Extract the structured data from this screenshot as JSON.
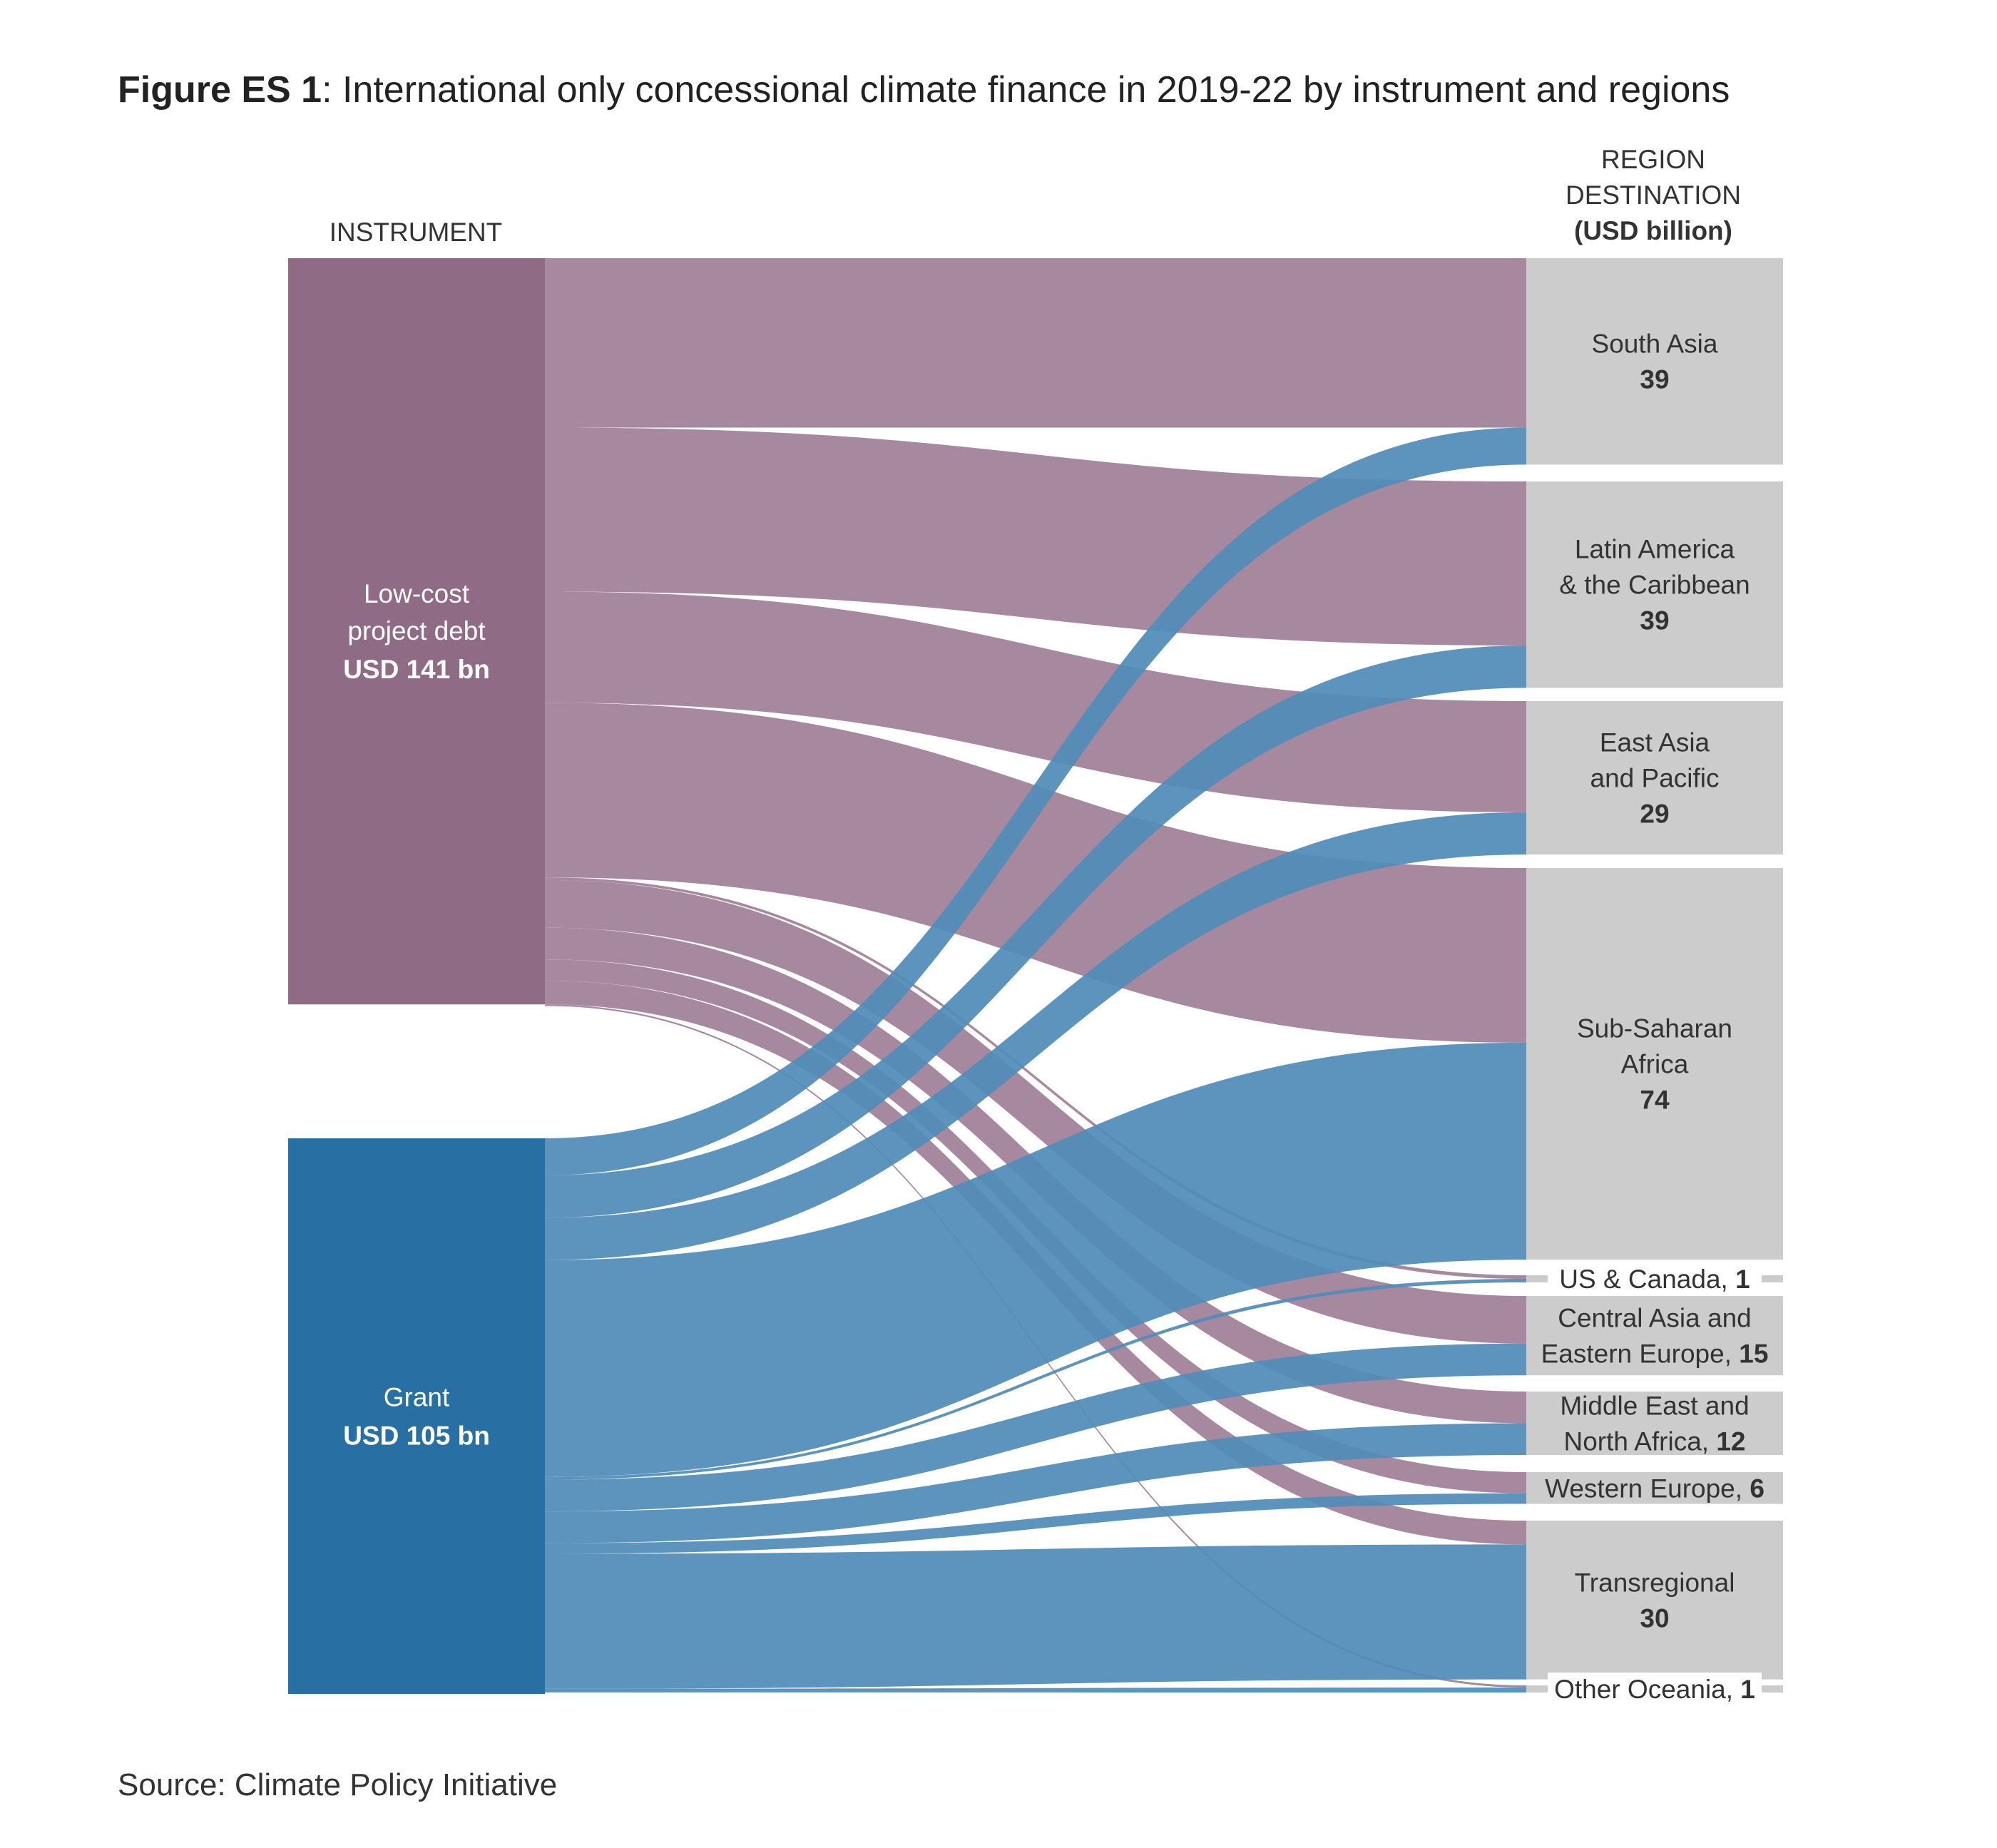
{
  "title": {
    "prefix": "Figure ES 1",
    "text": ": International only concessional climate finance in 2019-22 by instrument and regions"
  },
  "source": "Source: Climate Policy Initiative",
  "headers": {
    "instrument": "INSTRUMENT",
    "region_line1": "REGION",
    "region_line2": "DESTINATION",
    "region_line3": "(USD billion)"
  },
  "colors": {
    "debt_node": "#8f6b86",
    "debt_flow": "#a6889f",
    "grant_node": "#286fa4",
    "grant_flow": "#508cb8",
    "region_node": "#cccccc"
  },
  "chart_data": {
    "type": "sankey",
    "unit": "USD billion",
    "sources": [
      {
        "id": "debt",
        "label_lines": [
          "Low-cost",
          "project debt"
        ],
        "value_label": "USD 141 bn",
        "value": 141
      },
      {
        "id": "grant",
        "label_lines": [
          "Grant"
        ],
        "value_label": "USD 105 bn",
        "value": 105
      }
    ],
    "targets": [
      {
        "id": "south_asia",
        "label_lines": [
          "South Asia"
        ],
        "value_label": "39",
        "value": 39
      },
      {
        "id": "latam",
        "label_lines": [
          "Latin America",
          "& the Caribbean"
        ],
        "value_label": "39",
        "value": 39
      },
      {
        "id": "east_asia",
        "label_lines": [
          "East Asia",
          "and Pacific"
        ],
        "value_label": "29",
        "value": 29
      },
      {
        "id": "ssa",
        "label_lines": [
          "Sub-Saharan",
          "Africa"
        ],
        "value_label": "74",
        "value": 74
      },
      {
        "id": "us_canada",
        "label_lines": [
          "US & Canada,"
        ],
        "value_label": "1",
        "value": 1
      },
      {
        "id": "ca_ee",
        "label_lines": [
          "Central Asia and",
          "Eastern Europe,"
        ],
        "value_label": "15",
        "value": 15
      },
      {
        "id": "mena",
        "label_lines": [
          "Middle East and",
          "North Africa,"
        ],
        "value_label": "12",
        "value": 12
      },
      {
        "id": "w_europe",
        "label_lines": [
          "Western Europe,"
        ],
        "value_label": "6",
        "value": 6
      },
      {
        "id": "transregional",
        "label_lines": [
          "Transregional"
        ],
        "value_label": "30",
        "value": 30
      },
      {
        "id": "oceania",
        "label_lines": [
          "Other Oceania,"
        ],
        "value_label": "1",
        "value": 1
      }
    ],
    "flows": [
      {
        "source": "debt",
        "target": "south_asia",
        "value": 32
      },
      {
        "source": "debt",
        "target": "latam",
        "value": 31
      },
      {
        "source": "debt",
        "target": "east_asia",
        "value": 21
      },
      {
        "source": "debt",
        "target": "ssa",
        "value": 33
      },
      {
        "source": "debt",
        "target": "us_canada",
        "value": 0.5
      },
      {
        "source": "debt",
        "target": "ca_ee",
        "value": 9
      },
      {
        "source": "debt",
        "target": "mena",
        "value": 6
      },
      {
        "source": "debt",
        "target": "w_europe",
        "value": 4
      },
      {
        "source": "debt",
        "target": "transregional",
        "value": 4.5
      },
      {
        "source": "debt",
        "target": "oceania",
        "value": 0.3
      },
      {
        "source": "grant",
        "target": "south_asia",
        "value": 7
      },
      {
        "source": "grant",
        "target": "latam",
        "value": 8
      },
      {
        "source": "grant",
        "target": "east_asia",
        "value": 8
      },
      {
        "source": "grant",
        "target": "ssa",
        "value": 41
      },
      {
        "source": "grant",
        "target": "us_canada",
        "value": 0.5
      },
      {
        "source": "grant",
        "target": "ca_ee",
        "value": 6
      },
      {
        "source": "grant",
        "target": "mena",
        "value": 6
      },
      {
        "source": "grant",
        "target": "w_europe",
        "value": 2
      },
      {
        "source": "grant",
        "target": "transregional",
        "value": 25.5
      },
      {
        "source": "grant",
        "target": "oceania",
        "value": 0.7
      }
    ]
  }
}
